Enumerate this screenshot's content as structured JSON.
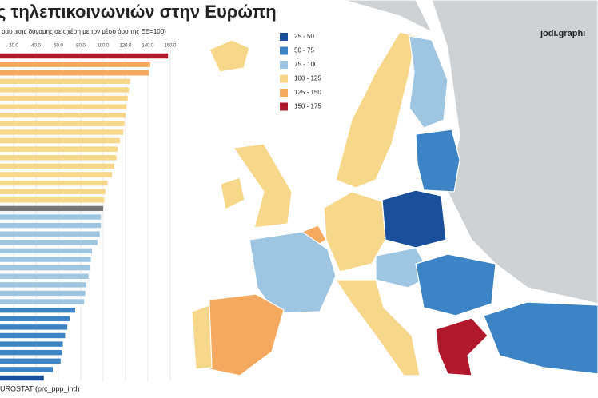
{
  "chart_data": {
    "type": "bar",
    "title": "ς τηλεπικοινωνιών στην Ευρώπη",
    "subtitle": "ραστικής δύναμης σε σχέση με τον μέσο όρο της ΕΕ=100)",
    "brand": "jodi.graphi",
    "source": "UROSTAT (prc_ppp_ind)",
    "orientation": "horizontal",
    "xlim": [
      0,
      165
    ],
    "xticks": [
      {
        "value": 20,
        "label": "20.0"
      },
      {
        "value": 40,
        "label": "40.0"
      },
      {
        "value": 60,
        "label": "60.0"
      },
      {
        "value": 80,
        "label": "80.0"
      },
      {
        "value": 100,
        "label": "100.0"
      },
      {
        "value": 120,
        "label": "120.0"
      },
      {
        "value": 140,
        "label": "140.0"
      },
      {
        "value": 160,
        "label": "160.0"
      }
    ],
    "grid": true,
    "values": [
      158,
      142,
      141,
      124,
      123,
      122,
      121,
      120,
      119,
      118,
      115,
      113,
      112,
      110,
      108,
      104,
      102,
      101,
      100,
      98,
      98,
      97,
      95,
      90,
      89,
      88,
      87,
      85,
      84,
      83,
      75,
      70,
      68,
      66,
      64,
      63,
      62,
      55,
      47
    ],
    "colors": [
      "#b2182b",
      "#f4a95e",
      "#f4a95e",
      "#f7d88b",
      "#f7d88b",
      "#f7d88b",
      "#f7d88b",
      "#f7d88b",
      "#f7d88b",
      "#f7d88b",
      "#f7d88b",
      "#f7d88b",
      "#f7d88b",
      "#f7d88b",
      "#f7d88b",
      "#f7d88b",
      "#f7d88b",
      "#f7d88b",
      "#777777",
      "#9ec6e3",
      "#9ec6e3",
      "#9ec6e3",
      "#9ec6e3",
      "#9ec6e3",
      "#9ec6e3",
      "#9ec6e3",
      "#9ec6e3",
      "#9ec6e3",
      "#9ec6e3",
      "#9ec6e3",
      "#3d84c6",
      "#3d84c6",
      "#3d84c6",
      "#3d84c6",
      "#3d84c6",
      "#3d84c6",
      "#3d84c6",
      "#3d84c6",
      "#1a4f9c"
    ],
    "legend": [
      {
        "label": "25 - 50",
        "color": "#1a4f9c"
      },
      {
        "label": "50 - 75",
        "color": "#3d84c6"
      },
      {
        "label": "75 - 100",
        "color": "#9ec6e3"
      },
      {
        "label": "100 - 125",
        "color": "#f7d88b"
      },
      {
        "label": "125 - 150",
        "color": "#f4a95e"
      },
      {
        "label": "150 - 175",
        "color": "#b2182b"
      }
    ]
  }
}
